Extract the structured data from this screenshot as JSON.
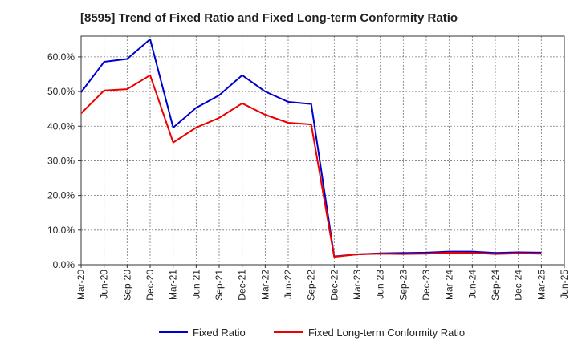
{
  "chart_data": {
    "type": "line",
    "title": "[8595]  Trend of Fixed Ratio and Fixed Long-term Conformity Ratio",
    "xlabel": "",
    "ylabel": "",
    "x": [
      "Mar-20",
      "Jun-20",
      "Sep-20",
      "Dec-20",
      "Mar-21",
      "Jun-21",
      "Sep-21",
      "Dec-21",
      "Mar-22",
      "Jun-22",
      "Sep-22",
      "Dec-22",
      "Mar-23",
      "Jun-23",
      "Sep-23",
      "Dec-23",
      "Mar-24",
      "Jun-24",
      "Sep-24",
      "Dec-24",
      "Mar-25"
    ],
    "x_ticks": [
      "Mar-20",
      "Jun-20",
      "Sep-20",
      "Dec-20",
      "Mar-21",
      "Jun-21",
      "Sep-21",
      "Dec-21",
      "Mar-22",
      "Jun-22",
      "Sep-22",
      "Dec-22",
      "Mar-23",
      "Jun-23",
      "Sep-23",
      "Dec-23",
      "Mar-24",
      "Jun-24",
      "Sep-24",
      "Dec-24",
      "Mar-25",
      "Jun-25"
    ],
    "ylim": [
      0,
      66
    ],
    "y_ticks": [
      0,
      10,
      20,
      30,
      40,
      50,
      60
    ],
    "y_tick_labels": [
      "0.0%",
      "10.0%",
      "20.0%",
      "30.0%",
      "40.0%",
      "50.0%",
      "60.0%"
    ],
    "grid": true,
    "legend_position": "bottom",
    "series": [
      {
        "name": "Fixed Ratio",
        "color": "#0000cc",
        "values": [
          49.8,
          58.6,
          59.4,
          65.1,
          39.6,
          45.3,
          48.9,
          54.7,
          50.0,
          47.0,
          46.4,
          2.4,
          3.0,
          3.3,
          3.4,
          3.5,
          3.8,
          3.8,
          3.4,
          3.6,
          3.5
        ]
      },
      {
        "name": "Fixed Long-term Conformity Ratio",
        "color": "#ee0000",
        "values": [
          43.7,
          50.3,
          50.7,
          54.7,
          35.3,
          39.6,
          42.4,
          46.6,
          43.3,
          41.0,
          40.5,
          2.3,
          3.0,
          3.2,
          3.1,
          3.2,
          3.5,
          3.4,
          3.1,
          3.3,
          3.2
        ]
      }
    ]
  }
}
